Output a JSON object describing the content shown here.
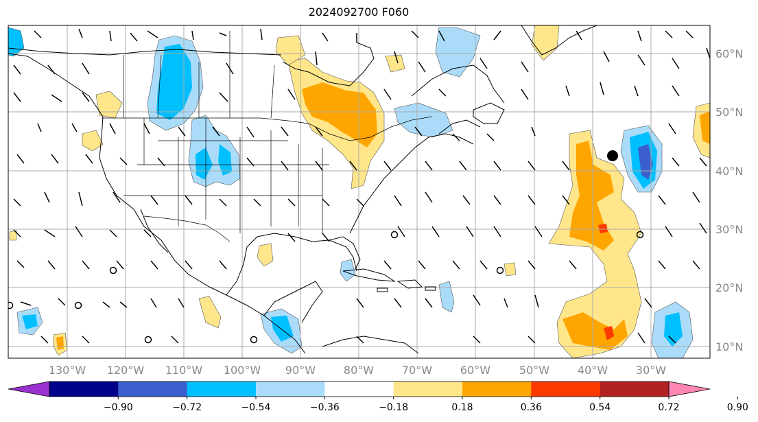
{
  "title": "2024092700 F060",
  "map": {
    "lat_labels": [
      "60°N",
      "50°N",
      "40°N",
      "30°N",
      "20°N",
      "10°N"
    ],
    "lon_labels": [
      "130°W",
      "120°W",
      "110°W",
      "100°W",
      "90°W",
      "80°W",
      "70°W",
      "60°W",
      "50°W",
      "40°W",
      "30°W"
    ],
    "marker": {
      "lon": -36.5,
      "lat": 42.5,
      "label": ""
    }
  },
  "colorbar": {
    "ticks": [
      "−0.90",
      "−0.72",
      "−0.54",
      "−0.36",
      "−0.18",
      "0.18",
      "0.36",
      "0.54",
      "0.72",
      "0.90"
    ],
    "colors": [
      "#9b30d0",
      "#00008b",
      "#3a5fcd",
      "#00bfff",
      "#aadcfa",
      "#ffffff",
      "#ffe68a",
      "#ffa500",
      "#ff3a00",
      "#b22222",
      "#ff85b2"
    ],
    "extend": "both"
  },
  "colors": {
    "neg_light": "#aadcfa",
    "neg_mid": "#00bfff",
    "neg_dark": "#3a5fcd",
    "pos_light": "#ffe68a",
    "pos_mid": "#ffa500",
    "pos_dark": "#ff3a00",
    "grid": "#aaaaaa"
  }
}
